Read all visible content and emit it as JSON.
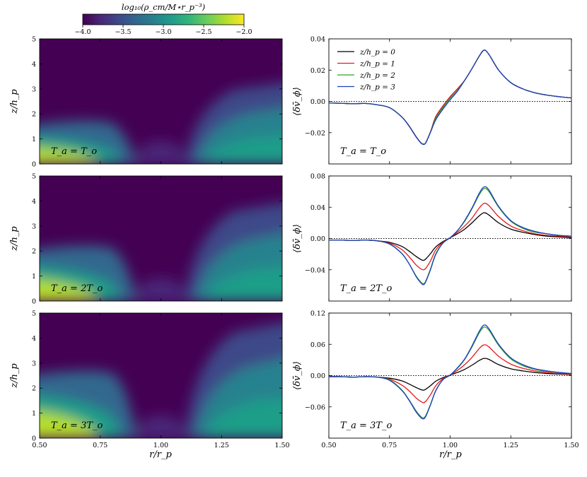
{
  "colors": {
    "z0": "#000000",
    "z1": "#e41a1c",
    "z2": "#2ca02c",
    "z3": "#1f3fbf",
    "viridis": [
      "#440154",
      "#482878",
      "#3e4989",
      "#31688e",
      "#26828e",
      "#1f9e89",
      "#35b779",
      "#6ece58",
      "#b5de2b",
      "#fde725"
    ]
  },
  "colorbar": {
    "label": "log₁₀(ρ_cm/M⋆r_p⁻³)",
    "ticks": [
      "−4.0",
      "−3.5",
      "−3.0",
      "−2.5",
      "−2.0"
    ],
    "range": [
      -4.0,
      -2.0
    ]
  },
  "xaxis": {
    "label": "r/r_p",
    "ticks": [
      "0.50",
      "0.75",
      "1.00",
      "1.25",
      "1.50"
    ],
    "range": [
      0.5,
      1.5
    ]
  },
  "maps": {
    "ylabel": "z/h_p",
    "yticks": [
      "0",
      "1",
      "2",
      "3",
      "4",
      "5"
    ],
    "yrange": [
      0,
      5
    ],
    "panels": [
      {
        "label": "T_a = T_o",
        "temp_factor": 1
      },
      {
        "label": "T_a = 2T_o",
        "temp_factor": 2
      },
      {
        "label": "T_a = 3T_o",
        "temp_factor": 3
      }
    ]
  },
  "chart_data": [
    {
      "type": "line",
      "ylabel": "⟨δv̄_ϕ⟩",
      "annotation": "T_a = T_o",
      "ylim": [
        -0.04,
        0.04
      ],
      "yticks": [
        "−0.02",
        "0.00",
        "0.02",
        "0.04"
      ],
      "ytick_values": [
        -0.02,
        0.0,
        0.02,
        0.04
      ],
      "legend": [
        "z/h_p = 0",
        "z/h_p = 1",
        "z/h_p = 2",
        "z/h_p = 3"
      ],
      "x": [
        0.5,
        0.55,
        0.6,
        0.65,
        0.7,
        0.75,
        0.8,
        0.83,
        0.86,
        0.88,
        0.89,
        0.9,
        0.92,
        0.94,
        0.97,
        1.0,
        1.03,
        1.06,
        1.09,
        1.12,
        1.14,
        1.16,
        1.2,
        1.25,
        1.3,
        1.35,
        1.4,
        1.45,
        1.5
      ],
      "series": [
        {
          "name": "z/h_p = 0",
          "color": "z0",
          "values": [
            -0.001,
            -0.0012,
            -0.0015,
            -0.0013,
            -0.0022,
            -0.004,
            -0.0098,
            -0.0155,
            -0.0226,
            -0.0265,
            -0.0273,
            -0.0262,
            -0.019,
            -0.01,
            -0.003,
            0.003,
            0.008,
            0.0135,
            0.021,
            0.029,
            0.0328,
            0.03,
            0.02,
            0.012,
            0.008,
            0.0055,
            0.004,
            0.003,
            0.0022
          ]
        },
        {
          "name": "z/h_p = 1",
          "color": "z1",
          "values": [
            -0.001,
            -0.0012,
            -0.0015,
            -0.0013,
            -0.0022,
            -0.004,
            -0.0098,
            -0.0155,
            -0.0226,
            -0.0265,
            -0.0273,
            -0.0262,
            -0.019,
            -0.01,
            -0.003,
            0.003,
            0.008,
            0.0135,
            0.021,
            0.029,
            0.0328,
            0.03,
            0.02,
            0.012,
            0.008,
            0.0055,
            0.004,
            0.003,
            0.0022
          ]
        },
        {
          "name": "z/h_p = 2",
          "color": "z2",
          "values": [
            -0.001,
            -0.0012,
            -0.0015,
            -0.0013,
            -0.0022,
            -0.004,
            -0.0098,
            -0.0156,
            -0.0227,
            -0.0266,
            -0.0274,
            -0.0263,
            -0.0192,
            -0.011,
            -0.004,
            0.002,
            0.007,
            0.0135,
            0.021,
            0.029,
            0.0328,
            0.03,
            0.02,
            0.012,
            0.008,
            0.0055,
            0.004,
            0.003,
            0.0022
          ]
        },
        {
          "name": "z/h_p = 3",
          "color": "z3",
          "values": [
            -0.001,
            -0.0012,
            -0.0015,
            -0.0013,
            -0.0022,
            -0.004,
            -0.0099,
            -0.0157,
            -0.0228,
            -0.0267,
            -0.0275,
            -0.0264,
            -0.0194,
            -0.012,
            -0.005,
            0.001,
            0.0065,
            0.0135,
            0.021,
            0.029,
            0.0328,
            0.03,
            0.02,
            0.012,
            0.008,
            0.0055,
            0.004,
            0.003,
            0.0022
          ]
        }
      ]
    },
    {
      "type": "line",
      "ylabel": "⟨δv̄_ϕ⟩",
      "annotation": "T_a = 2T_o",
      "ylim": [
        -0.08,
        0.08
      ],
      "yticks": [
        "−0.04",
        "0.00",
        "0.04",
        "0.08"
      ],
      "ytick_values": [
        -0.04,
        0.0,
        0.04,
        0.08
      ],
      "x": [
        0.5,
        0.55,
        0.6,
        0.65,
        0.7,
        0.75,
        0.8,
        0.83,
        0.86,
        0.88,
        0.89,
        0.9,
        0.92,
        0.94,
        0.97,
        1.0,
        1.03,
        1.06,
        1.09,
        1.12,
        1.14,
        1.16,
        1.2,
        1.25,
        1.3,
        1.35,
        1.4,
        1.45,
        1.5
      ],
      "series": [
        {
          "name": "z/h_p = 0",
          "color": "z0",
          "values": [
            -0.002,
            -0.002,
            -0.0025,
            -0.002,
            -0.003,
            -0.005,
            -0.01,
            -0.016,
            -0.023,
            -0.027,
            -0.028,
            -0.026,
            -0.019,
            -0.011,
            -0.004,
            0.001,
            0.006,
            0.012,
            0.02,
            0.029,
            0.033,
            0.03,
            0.02,
            0.012,
            0.008,
            0.005,
            0.003,
            0.002,
            0.001
          ]
        },
        {
          "name": "z/h_p = 1",
          "color": "z1",
          "values": [
            -0.002,
            -0.002,
            -0.0025,
            -0.002,
            -0.003,
            -0.006,
            -0.014,
            -0.023,
            -0.034,
            -0.039,
            -0.04,
            -0.038,
            -0.028,
            -0.015,
            -0.005,
            0.001,
            0.008,
            0.016,
            0.026,
            0.039,
            0.045,
            0.042,
            0.028,
            0.016,
            0.01,
            0.006,
            0.004,
            0.003,
            0.002
          ]
        },
        {
          "name": "z/h_p = 2",
          "color": "z2",
          "values": [
            -0.002,
            -0.002,
            -0.0025,
            -0.002,
            -0.003,
            -0.007,
            -0.019,
            -0.032,
            -0.048,
            -0.056,
            -0.058,
            -0.054,
            -0.038,
            -0.02,
            -0.006,
            0.001,
            0.01,
            0.022,
            0.038,
            0.056,
            0.064,
            0.06,
            0.04,
            0.022,
            0.013,
            0.008,
            0.006,
            0.004,
            0.003
          ]
        },
        {
          "name": "z/h_p = 3",
          "color": "z3",
          "values": [
            -0.002,
            -0.002,
            -0.0025,
            -0.002,
            -0.003,
            -0.007,
            -0.019,
            -0.032,
            -0.049,
            -0.057,
            -0.059,
            -0.055,
            -0.039,
            -0.021,
            -0.006,
            0.001,
            0.01,
            0.023,
            0.039,
            0.058,
            0.066,
            0.062,
            0.041,
            0.023,
            0.014,
            0.009,
            0.006,
            0.004,
            0.003
          ]
        }
      ]
    },
    {
      "type": "line",
      "ylabel": "⟨δv̄_ϕ⟩",
      "annotation": "T_a = 3T_o",
      "ylim": [
        -0.12,
        0.12
      ],
      "yticks": [
        "−0.06",
        "0.00",
        "0.06",
        "0.12"
      ],
      "ytick_values": [
        -0.06,
        0.0,
        0.06,
        0.12
      ],
      "x": [
        0.5,
        0.55,
        0.6,
        0.65,
        0.7,
        0.75,
        0.8,
        0.83,
        0.86,
        0.88,
        0.89,
        0.9,
        0.92,
        0.94,
        0.97,
        1.0,
        1.03,
        1.06,
        1.09,
        1.12,
        1.14,
        1.16,
        1.2,
        1.25,
        1.3,
        1.35,
        1.4,
        1.45,
        1.5
      ],
      "series": [
        {
          "name": "z/h_p = 0",
          "color": "z0",
          "values": [
            -0.002,
            -0.002,
            -0.003,
            -0.002,
            -0.003,
            -0.005,
            -0.01,
            -0.016,
            -0.023,
            -0.027,
            -0.028,
            -0.026,
            -0.019,
            -0.011,
            -0.004,
            0.001,
            0.006,
            0.012,
            0.02,
            0.029,
            0.033,
            0.031,
            0.021,
            0.013,
            0.009,
            0.006,
            0.004,
            0.003,
            0.002
          ]
        },
        {
          "name": "z/h_p = 1",
          "color": "z1",
          "values": [
            -0.002,
            -0.002,
            -0.003,
            -0.002,
            -0.003,
            -0.007,
            -0.018,
            -0.029,
            -0.043,
            -0.05,
            -0.052,
            -0.049,
            -0.036,
            -0.02,
            -0.006,
            0.001,
            0.01,
            0.021,
            0.035,
            0.052,
            0.059,
            0.055,
            0.037,
            0.022,
            0.014,
            0.009,
            0.006,
            0.004,
            0.003
          ]
        },
        {
          "name": "z/h_p = 2",
          "color": "z2",
          "values": [
            -0.002,
            -0.002,
            -0.003,
            -0.002,
            -0.003,
            -0.008,
            -0.027,
            -0.046,
            -0.068,
            -0.079,
            -0.081,
            -0.076,
            -0.054,
            -0.029,
            -0.008,
            0.001,
            0.014,
            0.031,
            0.055,
            0.082,
            0.093,
            0.087,
            0.058,
            0.032,
            0.019,
            0.012,
            0.008,
            0.006,
            0.004
          ]
        },
        {
          "name": "z/h_p = 3",
          "color": "z3",
          "values": [
            -0.002,
            -0.002,
            -0.003,
            -0.002,
            -0.003,
            -0.009,
            -0.028,
            -0.047,
            -0.07,
            -0.081,
            -0.083,
            -0.078,
            -0.055,
            -0.03,
            -0.008,
            0.001,
            0.015,
            0.032,
            0.057,
            0.085,
            0.097,
            0.09,
            0.06,
            0.034,
            0.021,
            0.013,
            0.009,
            0.006,
            0.004
          ]
        }
      ]
    }
  ]
}
